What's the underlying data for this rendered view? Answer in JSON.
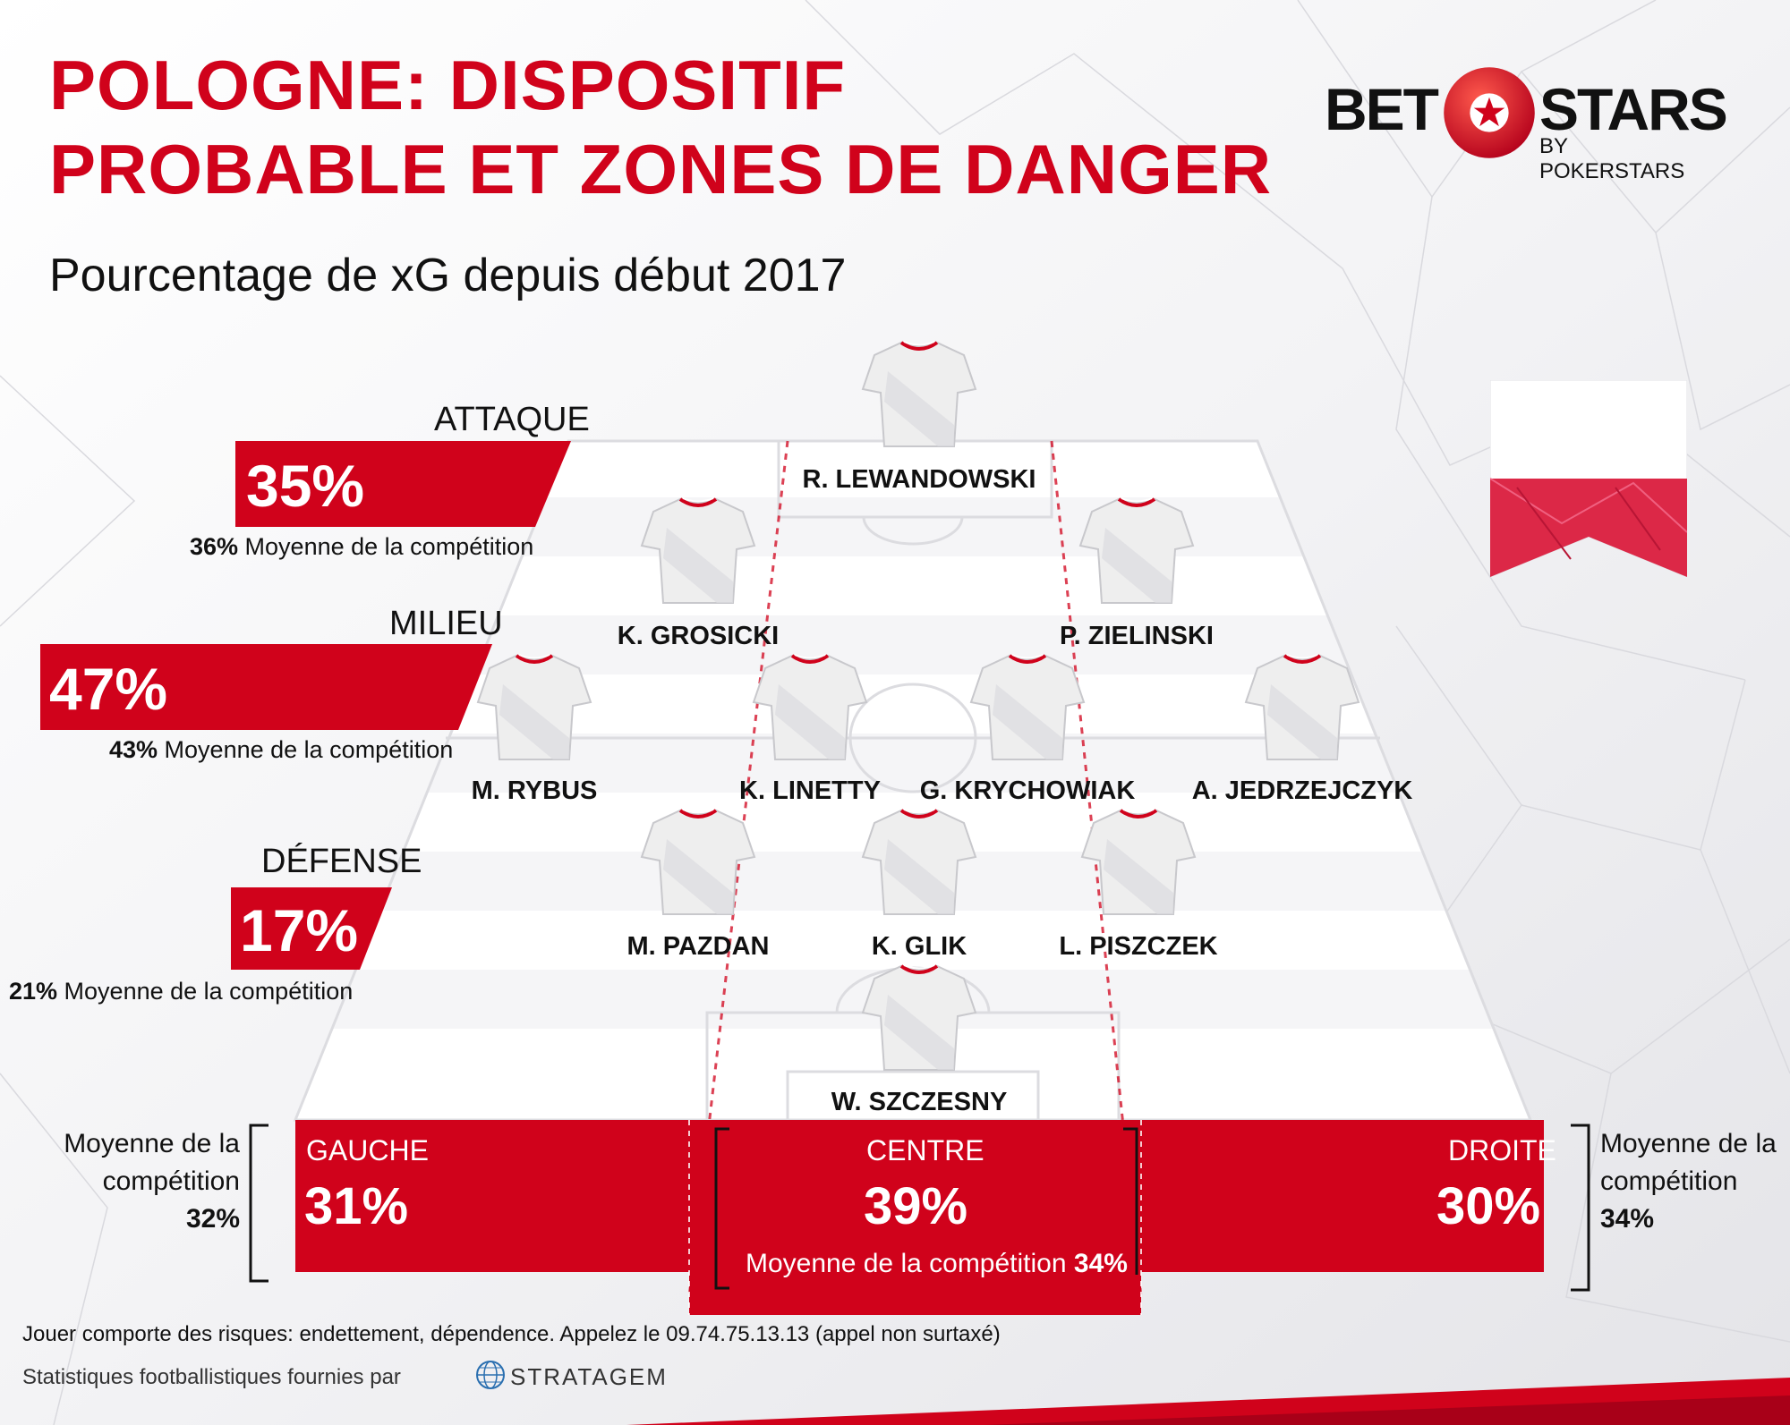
{
  "header": {
    "title_line1": "POLOGNE: DISPOSITIF",
    "title_line2": "PROBABLE ET ZONES DE DANGER",
    "subtitle": "Pourcentage de xG depuis début 2017"
  },
  "logo": {
    "bet": "BET",
    "stars": "STARS",
    "byline": "BY POKERSTARS"
  },
  "colors": {
    "accent": "#d0021b",
    "text": "#111111",
    "pitch": "#ffffff"
  },
  "zones": {
    "attaque": {
      "label": "ATTAQUE",
      "value": "35%",
      "avg_value": "36%",
      "avg_text": " Moyenne de la compétition"
    },
    "milieu": {
      "label": "MILIEU",
      "value": "47%",
      "avg_value": "43%",
      "avg_text": " Moyenne de la compétition"
    },
    "defense": {
      "label": "DÉFENSE",
      "value": "17%",
      "avg_value": "21%",
      "avg_text": " Moyenne de la compétition"
    }
  },
  "players": {
    "lewandowski": "R. LEWANDOWSKI",
    "grosicki": "K. GROSICKI",
    "zielinski": "P. ZIELINSKI",
    "rybus": "M. RYBUS",
    "linetty": "K. LINETTY",
    "krychowiak": "G. KRYCHOWIAK",
    "jedrzejczyk": "A. JEDRZEJCZYK",
    "pazdan": "M. PAZDAN",
    "glik": "K. GLIK",
    "piszczek": "L. PISZCZEK",
    "szczesny": "W. SZCZESNY"
  },
  "flanks": {
    "gauche": {
      "label": "GAUCHE",
      "value": "31%"
    },
    "centre": {
      "label": "CENTRE",
      "value": "39%",
      "avg_text": "Moyenne de la compétition ",
      "avg_value": "34%"
    },
    "droite": {
      "label": "DROITE",
      "value": "30%"
    }
  },
  "side_avg": {
    "left": {
      "line1": "Moyenne de la",
      "line2": "compétition",
      "value": "32%"
    },
    "right": {
      "line1": "Moyenne de la",
      "line2": "compétition",
      "value": "34%"
    }
  },
  "footer": {
    "warning": "Jouer comporte des risques: endettement, dépendence. Appelez le 09.74.75.13.13 (appel non surtaxé)",
    "credit": "Statistiques footballistiques fournies par",
    "provider": "STRATAGEM"
  }
}
